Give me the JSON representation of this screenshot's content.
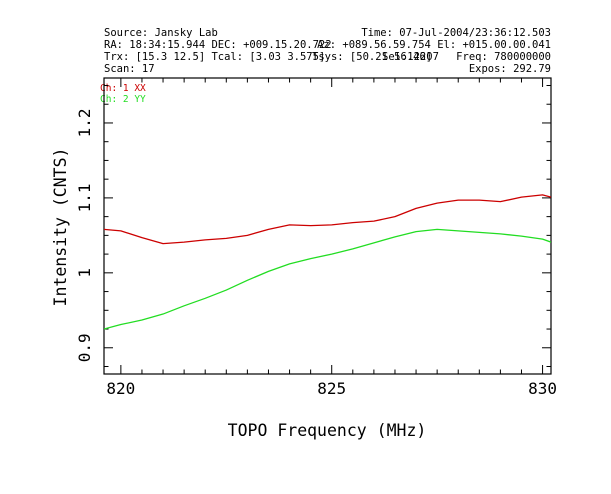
{
  "header": {
    "source": "Source: Jansky Lab",
    "time": "Time: 07-Jul-2004/23:36:12.503",
    "ra_dec": "RA: 18:34:15.944  DEC: +009.15.20.722",
    "az_el": "Az: +089.56.59.754  El: +015.00.00.041",
    "trx_tcal": "Trx: [15.3 12.5]   Tcal: [3.03 3.575]",
    "tsys": "Tsys: [50.21 56.46]",
    "overlap": "Sel:12207",
    "freq": "Freq: 780000000",
    "scan": "Scan: 17",
    "expos": "Expos: 292.79"
  },
  "colors": {
    "ch1": "#cc0000",
    "ch2": "#22dd22"
  },
  "chart_data": {
    "type": "line",
    "xlabel": "TOPO Frequency (MHz)",
    "ylabel": "Intensity (CNTS)",
    "xlim": [
      819.6,
      830.2
    ],
    "ylim": [
      0.865,
      1.26
    ],
    "x_ticks": [
      820,
      825,
      830
    ],
    "x_tick_labels": [
      "820",
      "825",
      "830"
    ],
    "y_ticks": [
      0.9,
      1,
      1.1,
      1.2
    ],
    "y_tick_labels": [
      "0.9",
      "1",
      "1.1",
      "1.2"
    ],
    "grid": false,
    "legend_position": "top-left",
    "series": [
      {
        "name": "Ch: 1 XX",
        "color": "#cc0000",
        "x": [
          819.6,
          820.0,
          820.5,
          821.0,
          821.5,
          822.0,
          822.5,
          823.0,
          823.5,
          824.0,
          824.5,
          825.0,
          825.5,
          826.0,
          826.5,
          827.0,
          827.5,
          828.0,
          828.5,
          829.0,
          829.5,
          830.0,
          830.2
        ],
        "y": [
          1.058,
          1.056,
          1.047,
          1.039,
          1.041,
          1.044,
          1.046,
          1.05,
          1.058,
          1.064,
          1.063,
          1.064,
          1.067,
          1.069,
          1.075,
          1.086,
          1.093,
          1.097,
          1.097,
          1.095,
          1.101,
          1.104,
          1.101
        ]
      },
      {
        "name": "Ch: 2 YY",
        "color": "#22dd22",
        "x": [
          819.6,
          820.0,
          820.5,
          821.0,
          821.5,
          822.0,
          822.5,
          823.0,
          823.5,
          824.0,
          824.5,
          825.0,
          825.5,
          826.0,
          826.5,
          827.0,
          827.5,
          828.0,
          828.5,
          829.0,
          829.5,
          830.0,
          830.2
        ],
        "y": [
          0.925,
          0.931,
          0.937,
          0.945,
          0.956,
          0.966,
          0.977,
          0.99,
          1.002,
          1.012,
          1.019,
          1.025,
          1.032,
          1.04,
          1.048,
          1.055,
          1.058,
          1.056,
          1.054,
          1.052,
          1.049,
          1.045,
          1.041
        ]
      }
    ]
  }
}
